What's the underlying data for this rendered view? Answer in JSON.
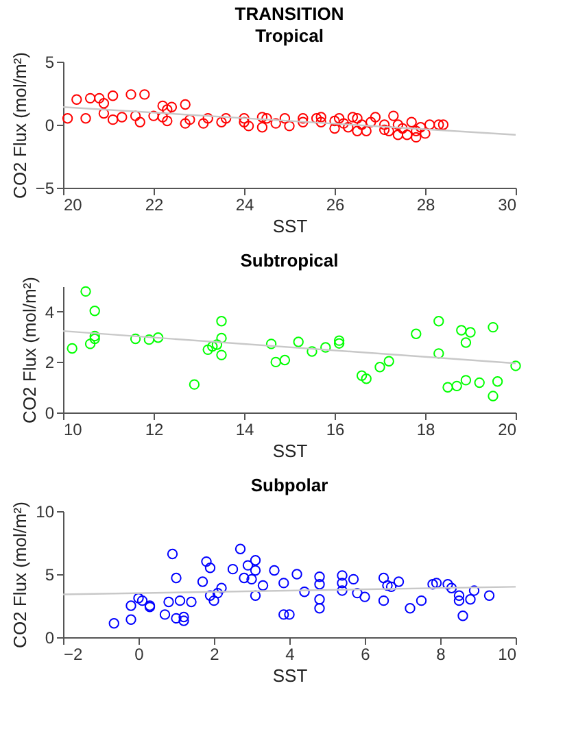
{
  "chart_data": [
    {
      "type": "scatter",
      "title": "TRANSITION",
      "subtitle": "Tropical",
      "xlabel": "SST",
      "ylabel": "CO2 Flux (mol/m²)",
      "xlim": [
        20,
        30
      ],
      "xticks": [
        20,
        22,
        24,
        26,
        28,
        30
      ],
      "ylim": [
        -5,
        5
      ],
      "yticks": [
        -5,
        0,
        5
      ],
      "grid": false,
      "series": [
        {
          "color": "#ff0000",
          "marker": "circle",
          "x": [
            20.1,
            20.3,
            20.5,
            20.6,
            20.8,
            20.9,
            20.9,
            21.1,
            21.1,
            21.3,
            21.5,
            21.8,
            21.6,
            21.7,
            22.0,
            22.2,
            22.2,
            22.3,
            22.3,
            22.4,
            22.7,
            22.7,
            22.8,
            23.1,
            23.2,
            23.5,
            23.6,
            24.0,
            24.0,
            24.1,
            24.4,
            24.4,
            24.5,
            24.7,
            24.9,
            25.0,
            25.3,
            25.3,
            25.6,
            25.7,
            25.7,
            26.0,
            26.0,
            26.1,
            26.2,
            26.3,
            26.4,
            26.5,
            26.5,
            26.6,
            26.7,
            26.8,
            26.9,
            27.1,
            27.1,
            27.2,
            27.3,
            27.4,
            27.4,
            27.5,
            27.6,
            27.7,
            27.8,
            27.8,
            27.9,
            28.0,
            28.1,
            28.3,
            28.4
          ],
          "values": [
            0.5,
            2.0,
            0.5,
            2.1,
            2.1,
            1.7,
            0.9,
            2.3,
            0.4,
            0.6,
            2.4,
            2.4,
            0.7,
            0.2,
            0.7,
            1.5,
            0.6,
            0.3,
            1.2,
            1.4,
            1.6,
            0.1,
            0.4,
            0.1,
            0.5,
            0.2,
            0.5,
            0.5,
            0.2,
            -0.1,
            0.6,
            -0.2,
            0.5,
            0.1,
            0.5,
            -0.1,
            0.5,
            0.2,
            0.5,
            0.6,
            0.2,
            0.3,
            -0.3,
            0.5,
            0.1,
            -0.2,
            0.6,
            -0.5,
            0.5,
            0.0,
            -0.5,
            0.2,
            0.6,
            0.0,
            -0.4,
            -0.5,
            0.7,
            0.0,
            -0.8,
            -0.3,
            -0.8,
            0.2,
            -1.0,
            -0.5,
            -0.2,
            -0.7,
            0.0,
            0.0,
            0.0
          ]
        },
        {
          "type": "line",
          "color": "#c8c8c8",
          "x": [
            20,
            30
          ],
          "values": [
            1.4,
            -0.8
          ]
        }
      ]
    },
    {
      "type": "scatter",
      "title": "Subtropical",
      "xlabel": "SST",
      "ylabel": "CO2 Flux (mol/m²)",
      "xlim": [
        10,
        20
      ],
      "xticks": [
        10,
        12,
        14,
        16,
        18,
        20
      ],
      "ylim": [
        0,
        5
      ],
      "yticks": [
        0,
        2,
        4
      ],
      "grid": false,
      "series": [
        {
          "color": "#00ff00",
          "marker": "circle",
          "x": [
            10.2,
            10.5,
            10.7,
            10.6,
            10.7,
            10.7,
            11.6,
            11.9,
            12.1,
            12.9,
            13.2,
            13.3,
            13.4,
            13.5,
            13.5,
            13.5,
            14.6,
            14.7,
            14.9,
            15.2,
            15.5,
            15.8,
            16.1,
            16.1,
            16.6,
            16.7,
            17.0,
            17.2,
            17.8,
            18.3,
            18.3,
            18.5,
            18.7,
            18.8,
            18.9,
            19.0,
            18.9,
            19.2,
            19.5,
            19.5,
            19.6,
            20.0
          ],
          "values": [
            2.54,
            4.8,
            4.03,
            2.72,
            3.03,
            2.92,
            2.92,
            2.89,
            2.97,
            1.11,
            2.49,
            2.62,
            2.69,
            2.28,
            3.62,
            2.95,
            2.72,
            2.0,
            2.08,
            2.8,
            2.42,
            2.58,
            2.74,
            2.85,
            1.46,
            1.34,
            1.8,
            2.03,
            3.12,
            2.34,
            3.62,
            1.0,
            1.05,
            3.26,
            2.77,
            3.18,
            1.28,
            1.18,
            0.65,
            3.38,
            1.23,
            1.85
          ]
        },
        {
          "type": "line",
          "color": "#c8c8c8",
          "x": [
            10,
            20
          ],
          "values": [
            3.23,
            1.95
          ]
        }
      ]
    },
    {
      "type": "scatter",
      "title": "Subpolar",
      "xlabel": "SST",
      "ylabel": "CO2 Flux (mol/m²)",
      "xlim": [
        -2,
        10
      ],
      "xticks": [
        -2,
        0,
        2,
        4,
        6,
        8,
        10
      ],
      "ylim": [
        0,
        10
      ],
      "yticks": [
        0,
        5,
        10
      ],
      "grid": false,
      "series": [
        {
          "color": "#0000ff",
          "marker": "circle",
          "x": [
            -0.65,
            -0.2,
            -0.2,
            0.0,
            0.1,
            0.3,
            0.3,
            0.7,
            0.8,
            0.9,
            1.0,
            1.0,
            1.1,
            1.2,
            1.2,
            1.4,
            1.7,
            1.8,
            1.9,
            1.9,
            2.0,
            2.1,
            2.2,
            2.5,
            2.7,
            2.8,
            2.9,
            3.0,
            3.1,
            3.1,
            3.1,
            3.3,
            3.6,
            3.85,
            3.85,
            4.0,
            4.2,
            4.4,
            4.8,
            4.8,
            4.8,
            4.8,
            5.4,
            5.4,
            5.4,
            5.7,
            5.8,
            6.0,
            6.5,
            6.5,
            6.6,
            6.7,
            6.9,
            7.2,
            7.5,
            7.8,
            7.9,
            8.2,
            8.3,
            8.5,
            8.5,
            8.6,
            8.8,
            8.9,
            9.3
          ],
          "values": [
            1.1,
            1.4,
            2.5,
            3.1,
            2.9,
            2.5,
            2.4,
            1.8,
            2.8,
            6.6,
            4.7,
            1.5,
            2.9,
            1.3,
            1.6,
            2.8,
            4.4,
            6.0,
            5.5,
            3.3,
            2.9,
            3.5,
            3.9,
            5.4,
            7.0,
            4.7,
            5.7,
            4.6,
            6.1,
            5.3,
            3.3,
            4.1,
            5.3,
            4.3,
            1.8,
            1.8,
            5.0,
            3.6,
            4.8,
            4.2,
            3.0,
            2.3,
            4.9,
            4.3,
            3.7,
            4.6,
            3.5,
            3.2,
            4.7,
            2.9,
            4.1,
            4.0,
            4.4,
            2.3,
            2.9,
            4.2,
            4.3,
            4.2,
            3.9,
            3.3,
            2.9,
            1.7,
            3.0,
            3.7,
            3.3
          ]
        },
        {
          "type": "line",
          "color": "#c8c8c8",
          "x": [
            -2,
            10
          ],
          "values": [
            3.4,
            4.0
          ]
        }
      ]
    }
  ]
}
